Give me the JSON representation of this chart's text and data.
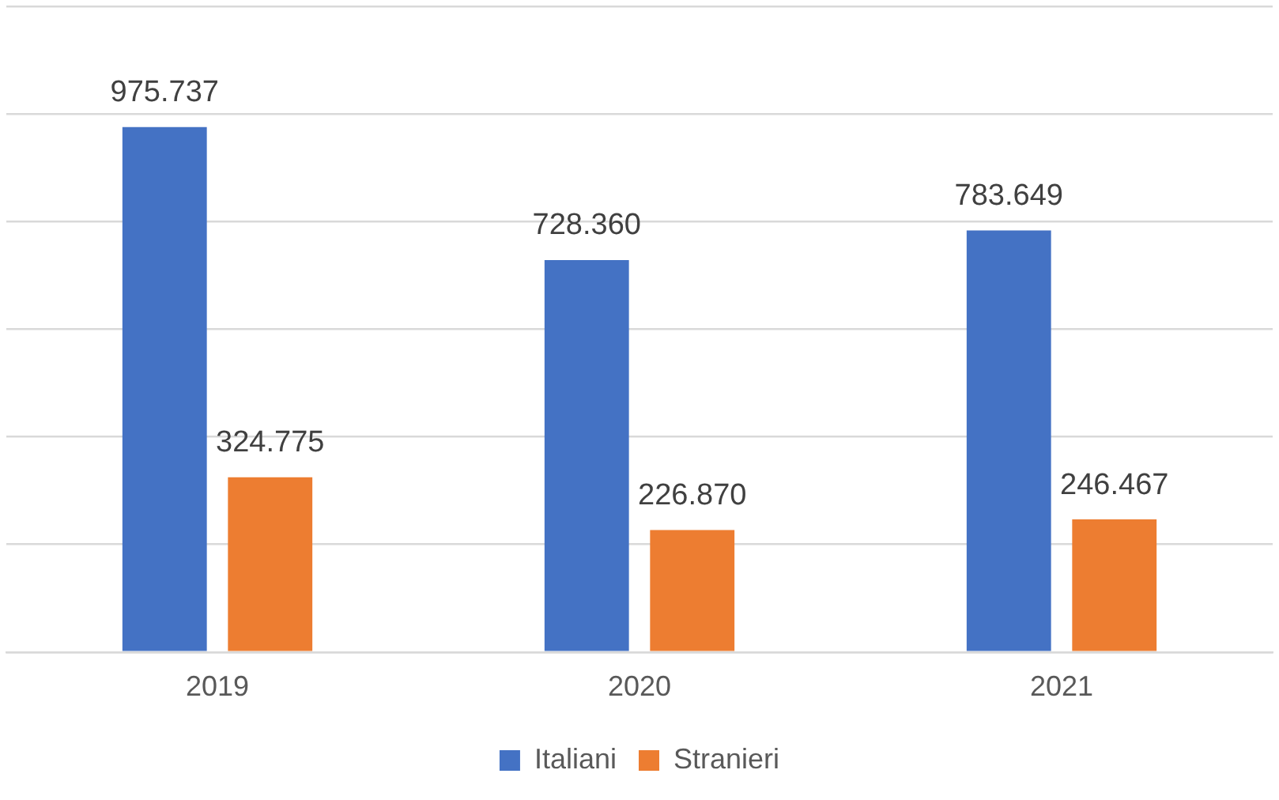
{
  "chart_data": {
    "type": "bar",
    "categories": [
      "2019",
      "2020",
      "2021"
    ],
    "series": [
      {
        "name": "Italiani",
        "color": "#4472c4",
        "values": [
          975737,
          728360,
          783649
        ],
        "value_labels": [
          "975.737",
          "728.360",
          "783.649"
        ]
      },
      {
        "name": "Stranieri",
        "color": "#ed7d31",
        "values": [
          324775,
          226870,
          246467
        ],
        "value_labels": [
          "324.775",
          "226.870",
          "246.467"
        ]
      }
    ],
    "ylim": [
      0,
      1200000
    ],
    "yticks": [
      {
        "value": 0,
        "label": null
      },
      {
        "value": 200000,
        "label": null
      },
      {
        "value": 400000,
        "label": null
      },
      {
        "value": 600000,
        "label": null
      },
      {
        "value": 800000,
        "label": null
      },
      {
        "value": 1000000,
        "label": null
      },
      {
        "value": 1200000,
        "label": null
      }
    ],
    "grid": "y",
    "tick_labels": "x",
    "legend": "bottom"
  }
}
